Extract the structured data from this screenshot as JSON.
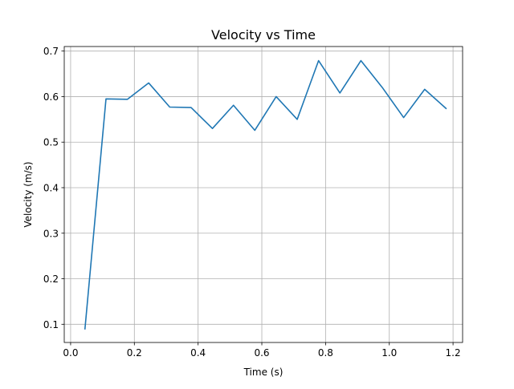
{
  "chart_data": {
    "type": "line",
    "title": "Velocity vs Time",
    "xlabel": "Time (s)",
    "ylabel": "Velocity (m/s)",
    "xlim": [
      -0.02,
      1.23
    ],
    "ylim": [
      0.06,
      0.71
    ],
    "xticks": [
      0.0,
      0.2,
      0.4,
      0.6,
      0.8,
      1.0,
      1.2
    ],
    "xtick_labels": [
      "0.0",
      "0.2",
      "0.4",
      "0.6",
      "0.8",
      "1.0",
      "1.2"
    ],
    "yticks": [
      0.1,
      0.2,
      0.3,
      0.4,
      0.5,
      0.6,
      0.7
    ],
    "ytick_labels": [
      "0.1",
      "0.2",
      "0.3",
      "0.4",
      "0.5",
      "0.6",
      "0.7"
    ],
    "grid": true,
    "legend": "none",
    "series": [
      {
        "color": "#1f77b4",
        "x": [
          0.045,
          0.111,
          0.178,
          0.245,
          0.311,
          0.378,
          0.445,
          0.511,
          0.578,
          0.645,
          0.711,
          0.778,
          0.845,
          0.911,
          0.978,
          1.045,
          1.111,
          1.178
        ],
        "y": [
          0.09,
          0.595,
          0.594,
          0.63,
          0.577,
          0.576,
          0.53,
          0.581,
          0.526,
          0.6,
          0.55,
          0.679,
          0.608,
          0.679,
          0.62,
          0.554,
          0.616,
          0.574
        ]
      }
    ]
  }
}
